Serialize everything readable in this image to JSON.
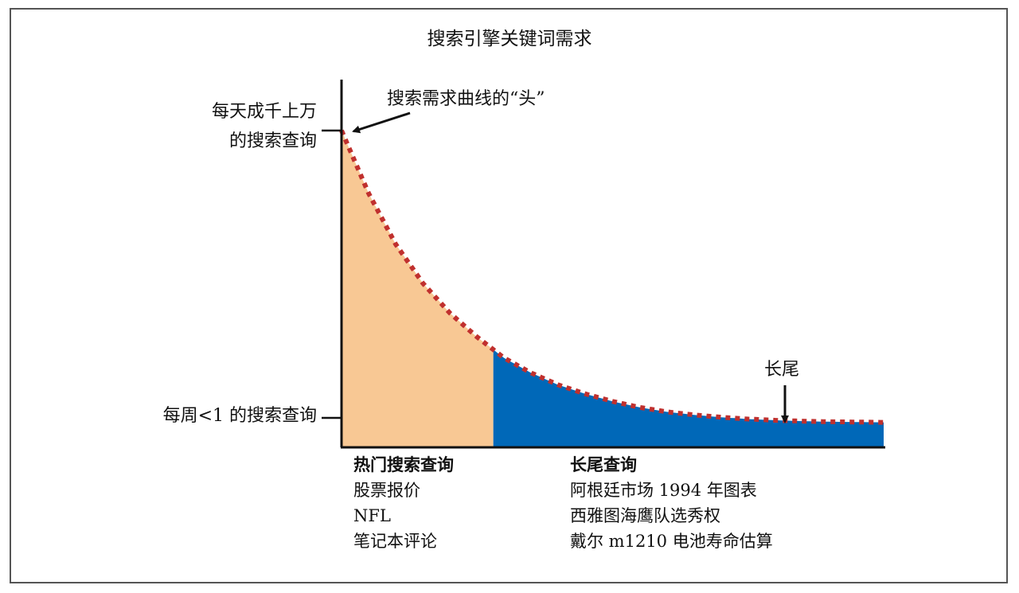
{
  "chart_data": {
    "type": "area",
    "title": "搜索引擎关键词需求",
    "y_axis_labels": {
      "high": [
        "每天成千上万",
        "的搜索查询"
      ],
      "low": "每周<1 的搜索查询"
    },
    "annotations": {
      "head": "搜索需求曲线的“头”",
      "tail": "长尾"
    },
    "curve": {
      "x": [
        0,
        0.05,
        0.1,
        0.15,
        0.2,
        0.25,
        0.3,
        0.35,
        0.4,
        0.45,
        0.5,
        0.55,
        0.6,
        0.65,
        0.7,
        0.75,
        0.8,
        0.85,
        0.9,
        0.95,
        1.0
      ],
      "y": [
        1.0,
        0.79,
        0.62,
        0.49,
        0.39,
        0.31,
        0.24,
        0.19,
        0.15,
        0.12,
        0.095,
        0.075,
        0.06,
        0.05,
        0.042,
        0.036,
        0.032,
        0.029,
        0.027,
        0.026,
        0.025
      ]
    },
    "split_x": 0.28,
    "segments": [
      {
        "heading": "热门搜索查询",
        "examples": [
          "股票报价",
          "NFL",
          "笔记本评论"
        ],
        "color": "#f8c894"
      },
      {
        "heading": "长尾查询",
        "examples": [
          "阿根廷市场 1994 年图表",
          "西雅图海鹰队选秀权",
          "戴尔 m1210 电池寿命估算"
        ],
        "color": "#0068b8"
      }
    ],
    "curve_color": "#c0302e",
    "grid": false
  }
}
